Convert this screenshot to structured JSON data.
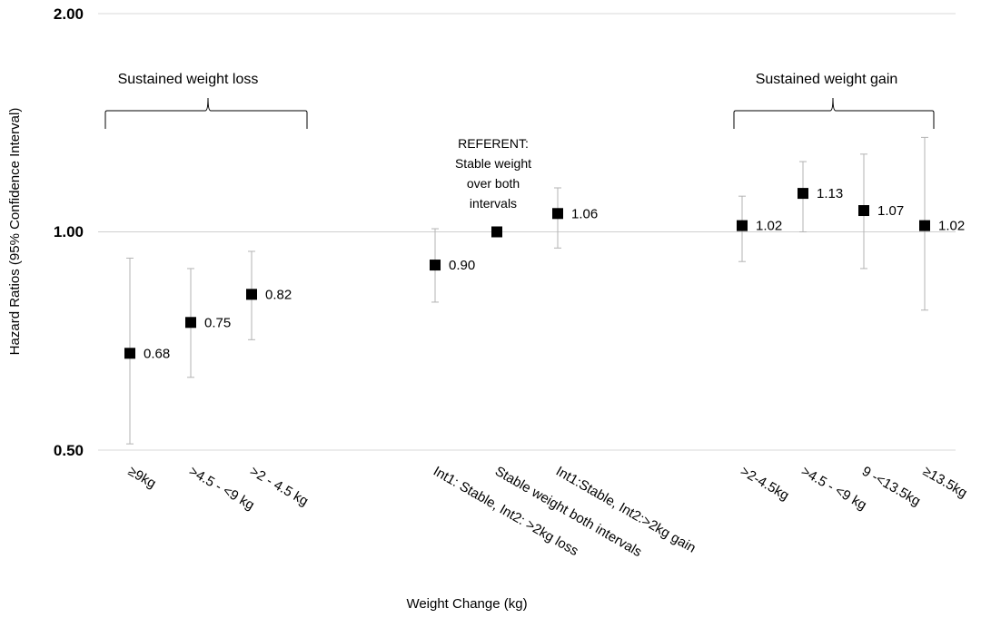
{
  "chart_data": {
    "type": "scatter",
    "subtype": "point-estimate with 95% CI error bars, log-scale y",
    "title": "",
    "xlabel": "Weight Change (kg)",
    "ylabel": "Hazard Ratios (95% Confidence Interval)",
    "yscale": "log",
    "ylim": [
      0.5,
      2.0
    ],
    "yticks": [
      "0.50",
      "1.00",
      "2.00"
    ],
    "reference_line": 1.0,
    "points": [
      {
        "category": "≥9kg",
        "hr": 0.68,
        "label": "0.68",
        "lo": 0.51,
        "hi": 0.92
      },
      {
        "category": ">4.5 - <9 kg",
        "hr": 0.75,
        "label": "0.75",
        "lo": 0.63,
        "hi": 0.89
      },
      {
        "category": ">2 - 4.5 kg",
        "hr": 0.82,
        "label": "0.82",
        "lo": 0.71,
        "hi": 0.94
      },
      {
        "category": "Int1: Stable, Int2: >2kg loss",
        "hr": 0.9,
        "label": "0.90",
        "lo": 0.8,
        "hi": 1.01
      },
      {
        "category": "Stable weight both intervals",
        "hr": 1.0,
        "label": "",
        "lo": null,
        "hi": null
      },
      {
        "category": "Int1:Stable, Int2:>2kg gain",
        "hr": 1.06,
        "label": "1.06",
        "lo": 0.95,
        "hi": 1.15
      },
      {
        "category": ">2-4.5kg",
        "hr": 1.02,
        "label": "1.02",
        "lo": 0.91,
        "hi": 1.12
      },
      {
        "category": ">4.5 - <9 kg",
        "hr": 1.13,
        "label": "1.13",
        "lo": 1.0,
        "hi": 1.25
      },
      {
        "category": "9 -<13.5kg",
        "hr": 1.07,
        "label": "1.07",
        "lo": 0.89,
        "hi": 1.28
      },
      {
        "category": "≥13.5kg",
        "hr": 1.02,
        "label": "1.02",
        "lo": 0.78,
        "hi": 1.35
      }
    ],
    "groups": [
      {
        "label": "Sustained weight loss",
        "members": [
          0,
          2
        ]
      },
      {
        "label": "Sustained weight gain",
        "members": [
          6,
          9
        ]
      }
    ],
    "annotation": {
      "lines": [
        "REFERENT:",
        "Stable weight",
        "over both",
        "intervals"
      ],
      "point_index": 4
    }
  }
}
